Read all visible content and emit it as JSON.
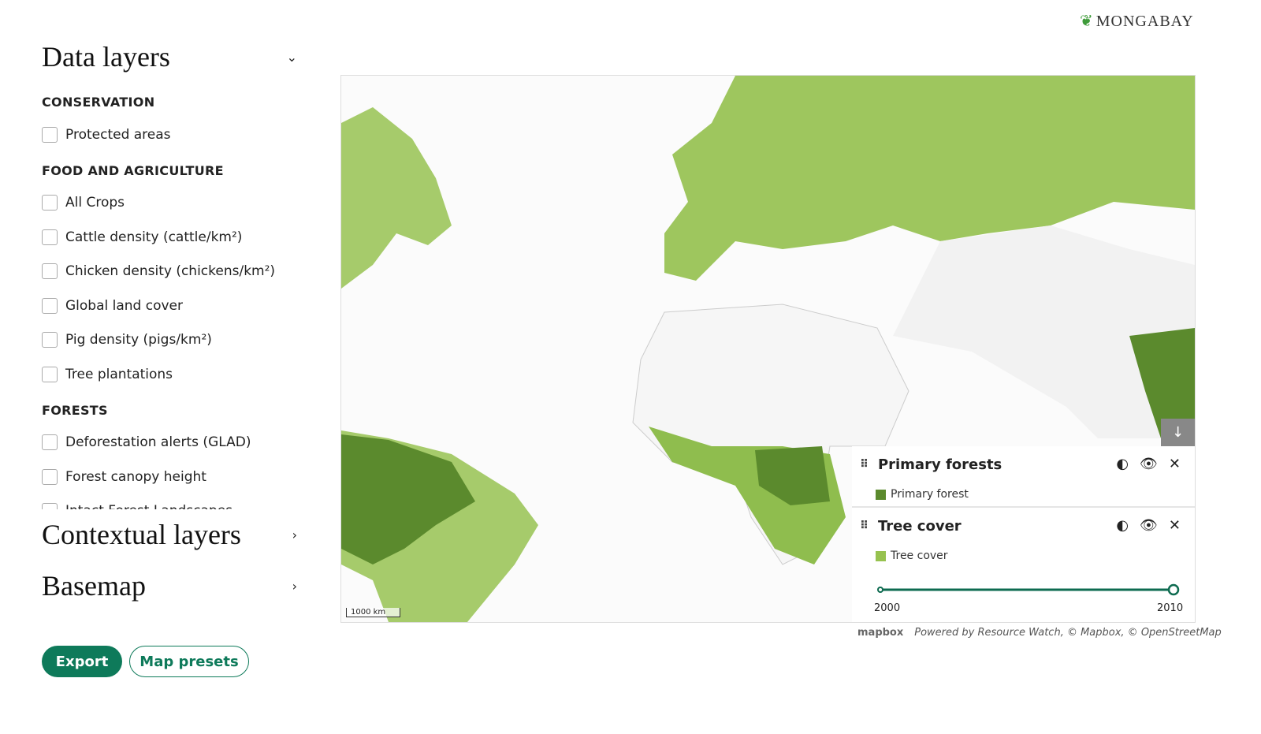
{
  "header": {
    "brand": "MONGABAY"
  },
  "sidebar": {
    "data_layers": {
      "title": "Data layers",
      "groups": [
        {
          "title": "CONSERVATION",
          "items": [
            "Protected areas"
          ]
        },
        {
          "title": "FOOD AND AGRICULTURE",
          "items": [
            "All Crops",
            "Cattle density (cattle/km²)",
            "Chicken density (chickens/km²)",
            "Global land cover",
            "Pig density (pigs/km²)",
            "Tree plantations"
          ]
        },
        {
          "title": "FORESTS",
          "items": [
            "Deforestation alerts (GLAD)",
            "Forest canopy height",
            "Intact Forest Landscapes"
          ]
        }
      ]
    },
    "contextual_layers": {
      "title": "Contextual layers"
    },
    "basemap": {
      "title": "Basemap"
    },
    "buttons": [
      "Export",
      "Map presets"
    ]
  },
  "map": {
    "scale": "1000 km",
    "attribution_logo": "mapbox",
    "attribution": "Powered by Resource Watch, © Mapbox, © OpenStreetMap",
    "legend": [
      {
        "title": "Primary forests",
        "item": "Primary forest",
        "color": "#5b8a2d"
      },
      {
        "title": "Tree cover",
        "item": "Tree cover",
        "color": "#97c24f",
        "timeline": {
          "start": 2000,
          "end": 2010
        }
      }
    ]
  }
}
